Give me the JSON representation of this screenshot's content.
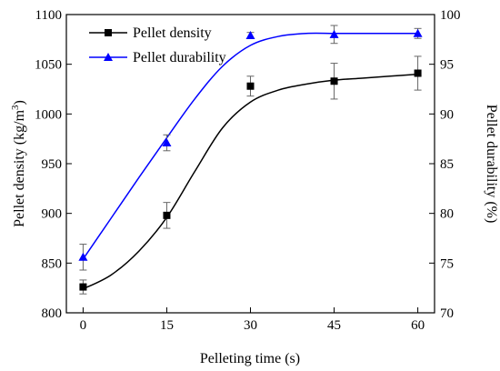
{
  "chart_data": {
    "type": "line",
    "xlabel": "Pelleting time (s)",
    "x_ticks": [
      0,
      15,
      30,
      45,
      60
    ],
    "xlim": [
      -3,
      63
    ],
    "ylabel_left": "Pellet density (kg/m",
    "ylabel_left_sup": "3",
    "ylabel_left_close": ")",
    "ylim_left": [
      800,
      1100
    ],
    "y_ticks_left": [
      800,
      850,
      900,
      950,
      1000,
      1050,
      1100
    ],
    "ylabel_right": "Pellet durability (%)",
    "ylim_right": [
      70,
      100
    ],
    "y_ticks_right": [
      70,
      75,
      80,
      85,
      90,
      95,
      100
    ],
    "legend_position": "top-left",
    "series": [
      {
        "name": "Pellet density",
        "axis": "left",
        "marker": "square",
        "color": "#000000",
        "x": [
          0,
          15,
          30,
          45,
          60
        ],
        "y": [
          826,
          898,
          1028,
          1033,
          1041
        ],
        "error": [
          7,
          13,
          10,
          18,
          17
        ],
        "fit_curve": [
          [
            0,
            824
          ],
          [
            5,
            838
          ],
          [
            10,
            862
          ],
          [
            15,
            896
          ],
          [
            20,
            942
          ],
          [
            25,
            986
          ],
          [
            30,
            1012
          ],
          [
            35,
            1024
          ],
          [
            40,
            1030
          ],
          [
            45,
            1034
          ],
          [
            50,
            1036
          ],
          [
            55,
            1038
          ],
          [
            60,
            1040
          ]
        ]
      },
      {
        "name": "Pellet durability",
        "axis": "right",
        "marker": "triangle",
        "color": "#0000ff",
        "x": [
          0,
          15,
          30,
          45,
          60
        ],
        "y": [
          75.6,
          87.1,
          97.9,
          98.0,
          98.1
        ],
        "error": [
          1.3,
          0.8,
          0.3,
          0.9,
          0.5
        ],
        "fit_curve": [
          [
            0,
            75.4
          ],
          [
            5,
            79.5
          ],
          [
            10,
            83.6
          ],
          [
            15,
            87.6
          ],
          [
            20,
            91.5
          ],
          [
            25,
            94.8
          ],
          [
            30,
            96.9
          ],
          [
            35,
            97.8
          ],
          [
            40,
            98.1
          ],
          [
            45,
            98.1
          ],
          [
            50,
            98.1
          ],
          [
            55,
            98.1
          ],
          [
            60,
            98.1
          ]
        ]
      }
    ]
  }
}
